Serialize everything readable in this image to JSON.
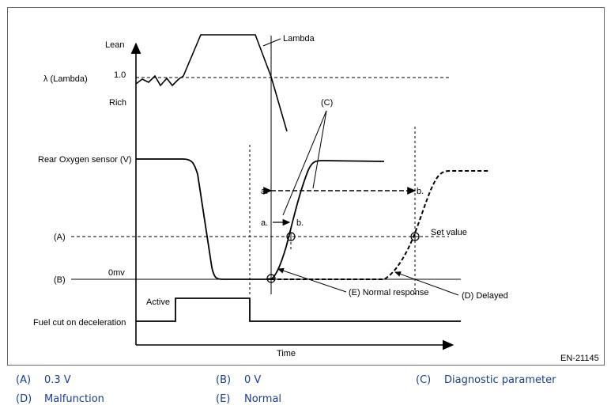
{
  "diagram": {
    "labels": {
      "lean": "Lean",
      "lambda_axis": "λ  (Lambda)",
      "one": "1.0",
      "rich": "Rich",
      "lambda_curve": "Lambda",
      "rear_o2": "Rear Oxygen sensor (V)",
      "a_level": "(A)",
      "b_level": "(B)",
      "zero_mv": "0mv",
      "active": "Active",
      "fuel_cut": "Fuel cut on deceleration",
      "time": "Time",
      "c_marker": "(C)",
      "a_dot_upper": "a.",
      "a_dot_lower": "a.",
      "b_dot_upper": "b.",
      "b_dot_lower": "b.",
      "set_value": "Set value",
      "normal_response": "(E) Normal response",
      "delayed": "(D) Delayed",
      "figure_id": "EN-21145"
    }
  },
  "legend": [
    {
      "code": "(A)",
      "text": "0.3 V"
    },
    {
      "code": "(B)",
      "text": "0 V"
    },
    {
      "code": "(C)",
      "text": "Diagnostic parameter"
    },
    {
      "code": "(D)",
      "text": "Malfunction"
    },
    {
      "code": "(E)",
      "text": "Normal"
    }
  ]
}
